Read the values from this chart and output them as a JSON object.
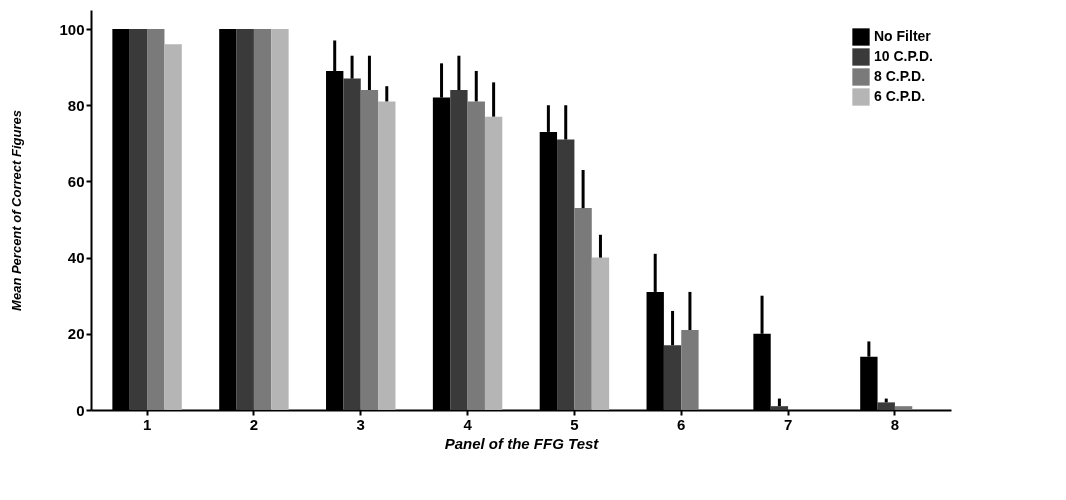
{
  "chart_data": {
    "type": "bar",
    "xlabel": "Panel of the FFG Test",
    "ylabel": "Mean Percent of Correct Figures",
    "categories": [
      "1",
      "2",
      "3",
      "4",
      "5",
      "6",
      "7",
      "8"
    ],
    "series": [
      {
        "name": "No Filter",
        "color": "#000000",
        "values": [
          100,
          100,
          89,
          82,
          73,
          31,
          20,
          14
        ],
        "errors": [
          null,
          null,
          [
            89,
            97
          ],
          [
            82,
            91
          ],
          [
            73,
            80
          ],
          [
            31,
            41
          ],
          [
            20,
            30
          ],
          [
            14,
            18
          ]
        ]
      },
      {
        "name": "10 C.P.D.",
        "color": "#3a3a3a",
        "values": [
          100,
          100,
          87,
          84,
          71,
          17,
          1,
          2
        ],
        "errors": [
          null,
          null,
          [
            87,
            93
          ],
          [
            84,
            93
          ],
          [
            71,
            80
          ],
          [
            17,
            26
          ],
          [
            1,
            3
          ],
          [
            2,
            3
          ]
        ]
      },
      {
        "name": "8 C.P.D.",
        "color": "#7a7a7a",
        "values": [
          100,
          100,
          84,
          81,
          53,
          21,
          0,
          1
        ],
        "errors": [
          null,
          null,
          [
            84,
            93
          ],
          [
            81,
            89
          ],
          [
            53,
            63
          ],
          [
            21,
            31
          ],
          null,
          null
        ]
      },
      {
        "name": "6 C.P.D.",
        "color": "#b5b5b5",
        "values": [
          96,
          100,
          81,
          77,
          40,
          0,
          0,
          0
        ],
        "errors": [
          null,
          null,
          [
            81,
            85
          ],
          [
            77,
            86
          ],
          [
            40,
            46
          ],
          null,
          null,
          null
        ]
      }
    ],
    "ylim": [
      0,
      105
    ],
    "yticks": [
      0,
      20,
      40,
      60,
      80,
      100
    ],
    "legend": "top right",
    "grid": false
  }
}
